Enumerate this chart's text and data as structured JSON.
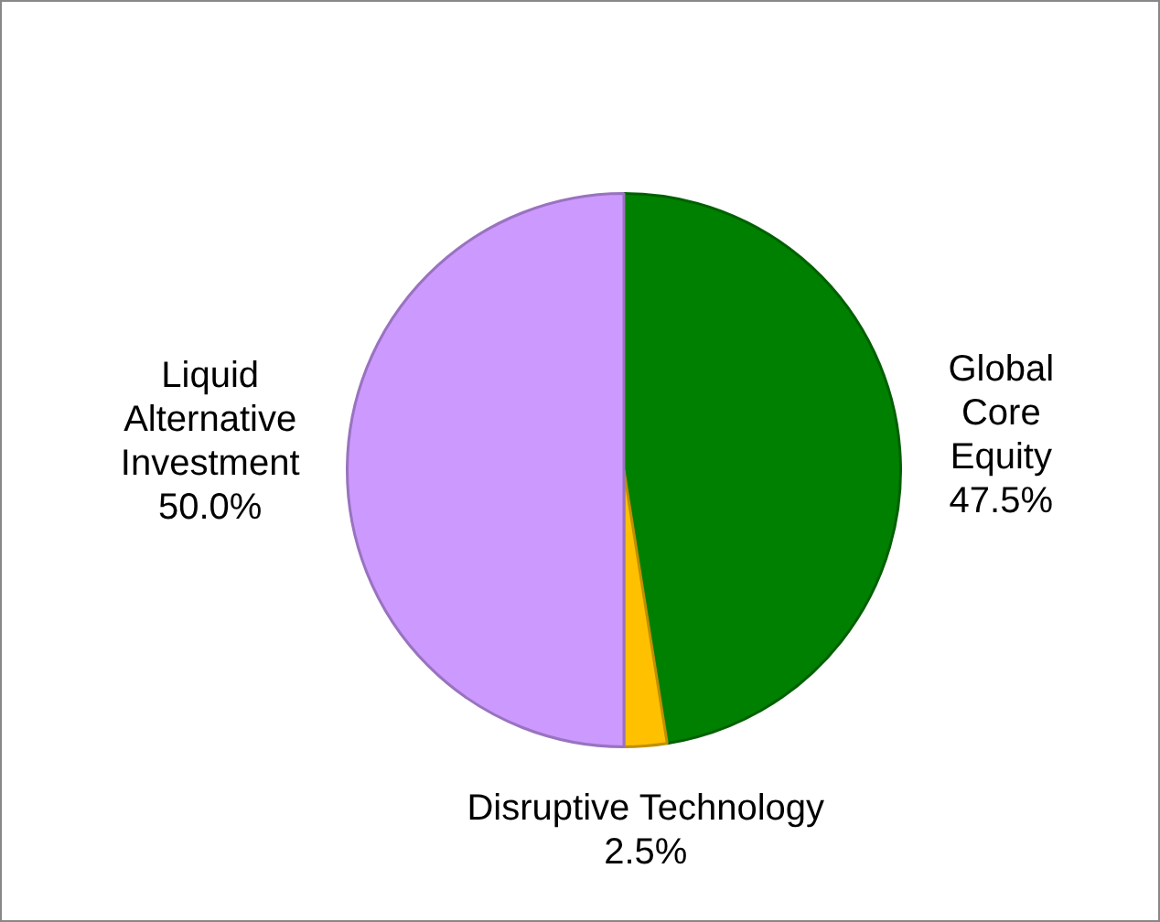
{
  "chart_data": {
    "type": "pie",
    "categories": [
      "Global Core Equity",
      "Disruptive Technology",
      "Liquid Alternative Investment"
    ],
    "values": [
      47.5,
      2.5,
      50.0
    ],
    "colors": [
      "#008000",
      "#ffc000",
      "#cc99ff"
    ],
    "value_labels": [
      "47.5%",
      "2.5%",
      "50.0%"
    ],
    "legend": false
  }
}
